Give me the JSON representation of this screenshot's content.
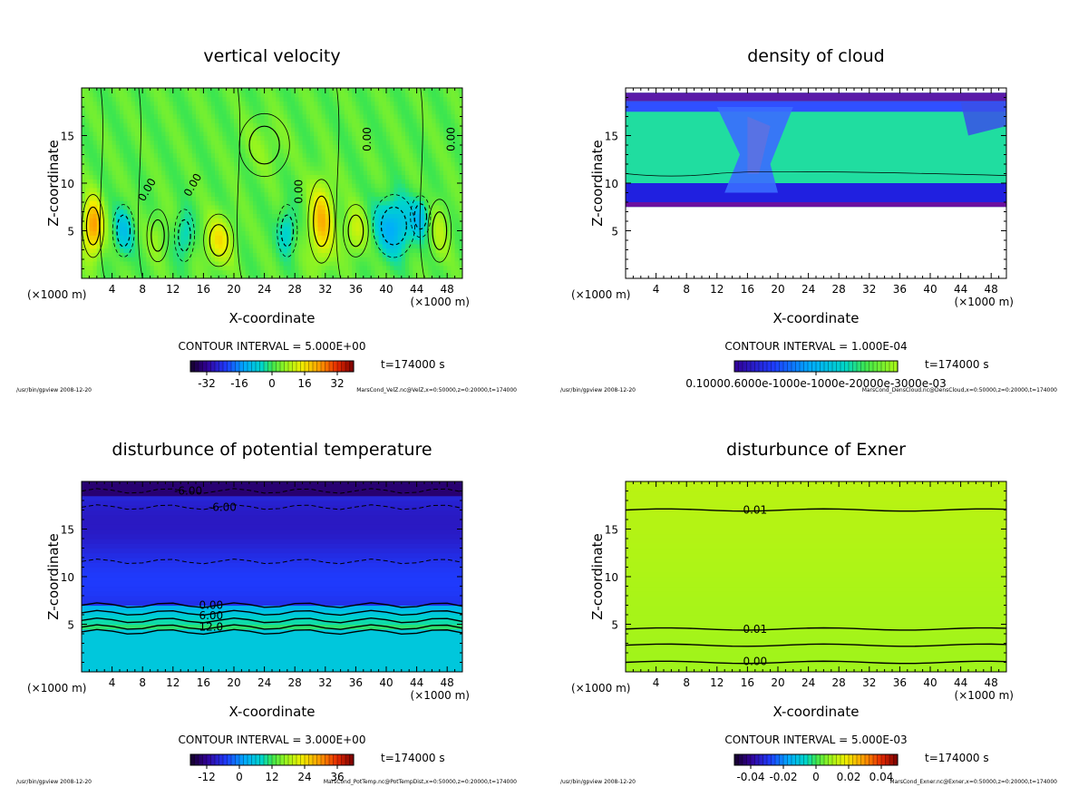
{
  "chart_data": [
    {
      "type": "heatmap",
      "title": "vertical velocity",
      "xlabel": "X-coordinate",
      "ylabel": "Z-coordinate",
      "x_unit_left": "(×1000 m)",
      "x_unit_right": "(×1000 m)",
      "xlim": [
        0,
        50
      ],
      "ylim": [
        0,
        20
      ],
      "x_ticks": [
        4,
        8,
        12,
        16,
        20,
        24,
        28,
        32,
        36,
        40,
        44,
        48
      ],
      "y_ticks": [
        5,
        10,
        15
      ],
      "contour_labels": [
        {
          "text": "0.00",
          "x": 9,
          "z": 9.5,
          "rotate": -60
        },
        {
          "text": "0.00",
          "x": 15,
          "z": 10,
          "rotate": -60
        },
        {
          "text": "0.00",
          "x": 29,
          "z": 9.5,
          "rotate": -90
        },
        {
          "text": "0.00",
          "x": 38,
          "z": 15,
          "rotate": -90
        },
        {
          "text": "0.00",
          "x": 49,
          "z": 15,
          "rotate": -90
        }
      ],
      "field": {
        "base": 2,
        "blobs": [
          {
            "x": 1.5,
            "z": 5.5,
            "sx": 1.3,
            "sz": 3.0,
            "a": 22
          },
          {
            "x": 5.5,
            "z": 5,
            "sx": 1.3,
            "sz": 2.5,
            "a": -10
          },
          {
            "x": 10,
            "z": 4.5,
            "sx": 1.3,
            "sz": 2.5,
            "a": 4
          },
          {
            "x": 13.5,
            "z": 4.5,
            "sx": 1.2,
            "sz": 2.5,
            "a": -8
          },
          {
            "x": 18,
            "z": 4,
            "sx": 1.8,
            "sz": 2.5,
            "a": 13
          },
          {
            "x": 27,
            "z": 5,
            "sx": 1.2,
            "sz": 2.5,
            "a": -9
          },
          {
            "x": 31.5,
            "z": 6,
            "sx": 1.6,
            "sz": 4.0,
            "a": 18
          },
          {
            "x": 36,
            "z": 5,
            "sx": 1.5,
            "sz": 2.5,
            "a": 9
          },
          {
            "x": 41,
            "z": 5.5,
            "sx": 2.5,
            "sz": 3.0,
            "a": -15
          },
          {
            "x": 44.5,
            "z": 6.5,
            "sx": 1.2,
            "sz": 2.0,
            "a": -10
          },
          {
            "x": 47,
            "z": 5,
            "sx": 1.4,
            "sz": 3.0,
            "a": 6
          },
          {
            "x": 24,
            "z": 14,
            "sx": 3.0,
            "sz": 3.0,
            "a": 3
          }
        ]
      },
      "contour_interval_label": "CONTOUR INTERVAL = 5.000E+00",
      "time_label": "t=174000 s",
      "colorbar": {
        "min": -40,
        "max": 40,
        "scheme": "rainbow",
        "ticks": [
          "-32",
          "-16",
          "0",
          "16",
          "32"
        ],
        "tick_values": [
          -32,
          -16,
          0,
          16,
          32
        ]
      },
      "footer_left": "/usr/bin/gpview  2008-12-20",
      "footer_right": "MarsCond_VelZ.nc@VelZ,x=0:50000,z=0:20000,t=174000"
    },
    {
      "type": "heatmap",
      "title": "density of cloud",
      "xlabel": "X-coordinate",
      "ylabel": "Z-coordinate",
      "x_unit_left": "(×1000 m)",
      "x_unit_right": "(×1000 m)",
      "xlim": [
        0,
        50
      ],
      "ylim": [
        0,
        20
      ],
      "x_ticks": [
        4,
        8,
        12,
        16,
        20,
        24,
        28,
        32,
        36,
        40,
        44,
        48
      ],
      "y_ticks": [
        5,
        10,
        15
      ],
      "cloud_layer": {
        "bottom": 7.5,
        "top": 19.5,
        "plume_x": [
          12,
          22
        ],
        "plume2_x": [
          44,
          50
        ],
        "plume_top": 16
      },
      "contour_interval_label": "CONTOUR INTERVAL = 1.000E-04",
      "time_label": "t=174000 s",
      "colorbar": {
        "min": 0,
        "max": 1,
        "scheme": "cloud",
        "ticks": [
          "0.10000.6000e-1000e-1000e-20000e-3000e-03"
        ],
        "tick_values": [
          0
        ]
      },
      "footer_left": "/usr/bin/gpview  2008-12-20",
      "footer_right": "MarsCond_DensCloud.nc@DensCloud,x=0:50000,z=0:20000,t=174000"
    },
    {
      "type": "heatmap",
      "title": "disturbunce of potential temperature",
      "xlabel": "X-coordinate",
      "ylabel": "Z-coordinate",
      "x_unit_left": "(×1000 m)",
      "x_unit_right": "(×1000 m)",
      "xlim": [
        0,
        50
      ],
      "ylim": [
        0,
        20
      ],
      "x_ticks": [
        4,
        8,
        12,
        16,
        20,
        24,
        28,
        32,
        36,
        40,
        44,
        48
      ],
      "y_ticks": [
        5,
        10,
        15
      ],
      "contour_lines": [
        {
          "z": 19.0,
          "dashed": true
        },
        {
          "z": 17.3,
          "dashed": true
        },
        {
          "z": 11.6,
          "dashed": true
        },
        {
          "z": 7.0,
          "dashed": false
        },
        {
          "z": 6.2,
          "dashed": false
        },
        {
          "z": 5.4,
          "dashed": false
        },
        {
          "z": 4.7,
          "dashed": false
        },
        {
          "z": 4.2,
          "dashed": false
        }
      ],
      "contour_labels": [
        {
          "text": "-6.00",
          "x": 14,
          "z": 19.0
        },
        {
          "text": "-6.00",
          "x": 18.5,
          "z": 17.3
        },
        {
          "text": "0.00",
          "x": 17,
          "z": 7.0
        },
        {
          "text": "6.00",
          "x": 17,
          "z": 5.9
        },
        {
          "text": "12.0",
          "x": 17,
          "z": 4.7
        }
      ],
      "contour_interval_label": "CONTOUR INTERVAL = 3.000E+00",
      "time_label": "t=174000 s",
      "colorbar": {
        "min": -18,
        "max": 42,
        "scheme": "rainbow",
        "ticks": [
          "-12",
          "0",
          "12",
          "24",
          "36"
        ],
        "tick_values": [
          -12,
          0,
          12,
          24,
          36
        ]
      },
      "footer_left": "/usr/bin/gpview  2008-12-20",
      "footer_right": "MarsCond_PotTemp.nc@PotTempDist,x=0:50000,z=0:20000,t=174000"
    },
    {
      "type": "heatmap",
      "title": "disturbunce of Exner",
      "xlabel": "X-coordinate",
      "ylabel": "Z-coordinate",
      "x_unit_left": "(×1000 m)",
      "x_unit_right": "(×1000 m)",
      "xlim": [
        0,
        50
      ],
      "ylim": [
        0,
        20
      ],
      "x_ticks": [
        4,
        8,
        12,
        16,
        20,
        24,
        28,
        32,
        36,
        40,
        44,
        48
      ],
      "y_ticks": [
        5,
        10,
        15
      ],
      "contour_lines": [
        {
          "z": 17.0,
          "dashed": false
        },
        {
          "z": 4.5,
          "dashed": false
        },
        {
          "z": 2.8,
          "dashed": false
        },
        {
          "z": 1.0,
          "dashed": false
        }
      ],
      "contour_labels": [
        {
          "text": "0.01",
          "x": 17,
          "z": 17.0
        },
        {
          "text": "0.01",
          "x": 17,
          "z": 4.5
        },
        {
          "text": "0.00",
          "x": 17,
          "z": 1.1
        }
      ],
      "contour_interval_label": "CONTOUR INTERVAL = 5.000E-03",
      "time_label": "t=174000 s",
      "colorbar": {
        "min": -0.05,
        "max": 0.05,
        "scheme": "rainbow",
        "ticks": [
          "-0.04",
          "-0.02",
          "0",
          "0.02",
          "0.04"
        ],
        "tick_values": [
          -0.04,
          -0.02,
          0,
          0.02,
          0.04
        ]
      },
      "footer_left": "/usr/bin/gpview  2008-12-20",
      "footer_right": "MarsCond_Exner.nc@Exner,x=0:50000,z=0:20000,t=174000"
    }
  ]
}
